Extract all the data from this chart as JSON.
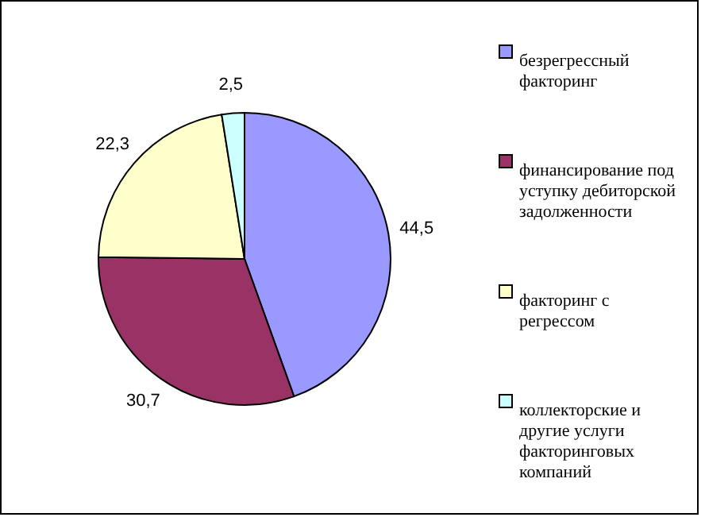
{
  "chart_data": {
    "type": "pie",
    "categories": [
      "безрегрессный факторинг",
      "финансирование под уступку дебиторской задолженности",
      "факторинг с регрессом",
      "коллекторские и другие услуги факторинговых компаний"
    ],
    "values": [
      44.5,
      30.7,
      22.3,
      2.5
    ],
    "value_labels": [
      "44,5",
      "30,7",
      "22,3",
      "2,5"
    ],
    "colors": [
      "#9999ff",
      "#993366",
      "#ffffcc",
      "#ccffff"
    ],
    "legend": "right"
  }
}
